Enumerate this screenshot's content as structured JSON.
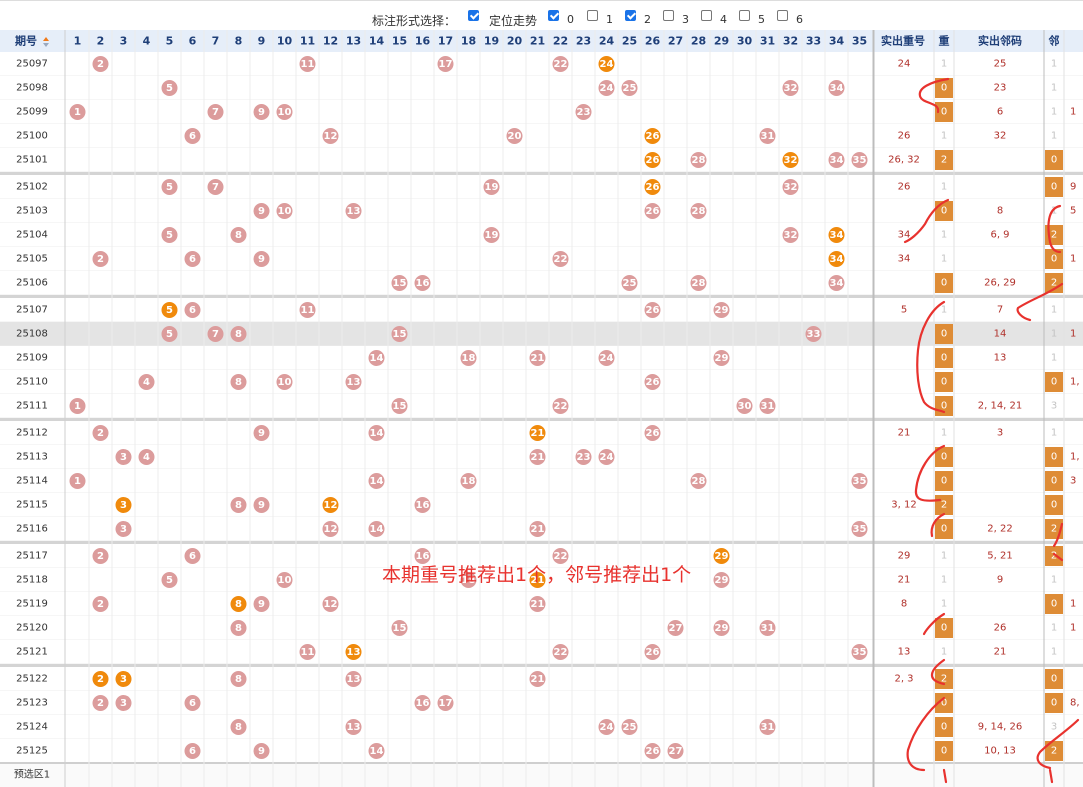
{
  "toolbar": {
    "label": "标注形式选择：",
    "options": [
      {
        "label": "定位走势",
        "checked": true
      },
      {
        "label": "0",
        "checked": true
      },
      {
        "label": "1",
        "checked": false
      },
      {
        "label": "2",
        "checked": true
      },
      {
        "label": "3",
        "checked": false
      },
      {
        "label": "4",
        "checked": false
      },
      {
        "label": "5",
        "checked": false
      },
      {
        "label": "6",
        "checked": false
      }
    ]
  },
  "header": {
    "period": "期号",
    "sort_icon": "sort-arrows-icon",
    "numbers": [
      "1",
      "2",
      "3",
      "4",
      "5",
      "6",
      "7",
      "8",
      "9",
      "10",
      "11",
      "12",
      "13",
      "14",
      "15",
      "16",
      "17",
      "18",
      "19",
      "20",
      "21",
      "22",
      "23",
      "24",
      "25",
      "26",
      "27",
      "28",
      "29",
      "30",
      "31",
      "32",
      "33",
      "34",
      "35"
    ],
    "repeat_col": "实出重号",
    "repeat_mark": "重",
    "adjacent_col": "实出邻码",
    "adjacent_mark": "邻"
  },
  "colors": {
    "ball_pink": "#dc9c9c",
    "ball_orange": "#f08a0c",
    "header_bg": "#e6eef9",
    "header_text": "#1f3f78",
    "mark_bg": "#de8c36",
    "annot_red": "#e8322e"
  },
  "rows": [
    {
      "period": "25097",
      "balls": [
        2,
        11,
        17,
        22,
        24
      ],
      "hl": [
        24
      ],
      "repeat": "24",
      "rmark": "1",
      "adjacent": "25",
      "amark": "1",
      "atail": ""
    },
    {
      "period": "25098",
      "balls": [
        5,
        24,
        25,
        32,
        34
      ],
      "hl": [],
      "repeat": "",
      "rmark": "0",
      "adjacent": "23",
      "amark": "1",
      "atail": ""
    },
    {
      "period": "25099",
      "balls": [
        1,
        7,
        9,
        10,
        23
      ],
      "hl": [],
      "repeat": "",
      "rmark": "0",
      "adjacent": "6",
      "amark": "1",
      "atail": "1"
    },
    {
      "period": "25100",
      "balls": [
        6,
        12,
        20,
        26,
        31
      ],
      "hl": [
        26
      ],
      "repeat": "26",
      "rmark": "1",
      "adjacent": "32",
      "amark": "1",
      "atail": ""
    },
    {
      "period": "25101",
      "balls": [
        26,
        28,
        32,
        34,
        35
      ],
      "hl": [
        26,
        32
      ],
      "repeat": "26, 32",
      "rmark": "2",
      "adjacent": "",
      "amark": "0",
      "atail": ""
    },
    {
      "period": "25102",
      "balls": [
        5,
        7,
        19,
        26,
        32
      ],
      "hl": [
        26
      ],
      "repeat": "26",
      "rmark": "1",
      "adjacent": "",
      "amark": "0",
      "atail": "9"
    },
    {
      "period": "25103",
      "balls": [
        9,
        10,
        13,
        26,
        28
      ],
      "hl": [],
      "repeat": "",
      "rmark": "0",
      "adjacent": "8",
      "amark": "1",
      "atail": "5"
    },
    {
      "period": "25104",
      "balls": [
        5,
        8,
        19,
        32,
        34
      ],
      "hl": [
        34
      ],
      "repeat": "34",
      "rmark": "1",
      "adjacent": "6, 9",
      "amark": "2",
      "atail": ""
    },
    {
      "period": "25105",
      "balls": [
        2,
        6,
        9,
        22,
        34
      ],
      "hl": [
        34
      ],
      "repeat": "34",
      "rmark": "1",
      "adjacent": "",
      "amark": "0",
      "atail": "1"
    },
    {
      "period": "25106",
      "balls": [
        15,
        16,
        25,
        28,
        34
      ],
      "hl": [],
      "repeat": "",
      "rmark": "0",
      "adjacent": "26, 29",
      "amark": "2",
      "atail": ""
    },
    {
      "period": "25107",
      "balls": [
        5,
        6,
        11,
        26,
        29
      ],
      "hl": [
        5
      ],
      "repeat": "5",
      "rmark": "1",
      "adjacent": "7",
      "amark": "1",
      "atail": ""
    },
    {
      "period": "25108",
      "balls": [
        5,
        7,
        8,
        15,
        33
      ],
      "hl": [],
      "repeat": "",
      "rmark": "0",
      "adjacent": "14",
      "amark": "1",
      "atail": "1"
    },
    {
      "period": "25109",
      "balls": [
        14,
        18,
        21,
        24,
        29
      ],
      "hl": [],
      "repeat": "",
      "rmark": "0",
      "adjacent": "13",
      "amark": "1",
      "atail": ""
    },
    {
      "period": "25110",
      "balls": [
        4,
        8,
        10,
        13,
        26
      ],
      "hl": [],
      "repeat": "",
      "rmark": "0",
      "adjacent": "",
      "amark": "0",
      "atail": "1,"
    },
    {
      "period": "25111",
      "balls": [
        1,
        15,
        22,
        30,
        31
      ],
      "hl": [],
      "repeat": "",
      "rmark": "0",
      "adjacent": "2, 14, 21",
      "amark": "3",
      "atail": ""
    },
    {
      "period": "25112",
      "balls": [
        2,
        9,
        14,
        21,
        26
      ],
      "hl": [
        21
      ],
      "repeat": "21",
      "rmark": "1",
      "adjacent": "3",
      "amark": "1",
      "atail": ""
    },
    {
      "period": "25113",
      "balls": [
        3,
        4,
        21,
        23,
        24
      ],
      "hl": [],
      "repeat": "",
      "rmark": "0",
      "adjacent": "",
      "amark": "0",
      "atail": "1,"
    },
    {
      "period": "25114",
      "balls": [
        1,
        14,
        18,
        28,
        35
      ],
      "hl": [],
      "repeat": "",
      "rmark": "0",
      "adjacent": "",
      "amark": "0",
      "atail": "3"
    },
    {
      "period": "25115",
      "balls": [
        3,
        8,
        9,
        12,
        16
      ],
      "hl": [
        3,
        12
      ],
      "repeat": "3, 12",
      "rmark": "2",
      "adjacent": "",
      "amark": "0",
      "atail": ""
    },
    {
      "period": "25116",
      "balls": [
        3,
        12,
        14,
        21,
        35
      ],
      "hl": [],
      "repeat": "",
      "rmark": "0",
      "adjacent": "2, 22",
      "amark": "2",
      "atail": ""
    },
    {
      "period": "25117",
      "balls": [
        2,
        6,
        16,
        22,
        29
      ],
      "hl": [
        29
      ],
      "repeat": "29",
      "rmark": "1",
      "adjacent": "5, 21",
      "amark": "2",
      "atail": ""
    },
    {
      "period": "25118",
      "balls": [
        5,
        10,
        18,
        21,
        29
      ],
      "hl": [
        21
      ],
      "repeat": "21",
      "rmark": "1",
      "adjacent": "9",
      "amark": "1",
      "atail": ""
    },
    {
      "period": "25119",
      "balls": [
        2,
        8,
        9,
        12,
        21
      ],
      "hl": [
        8
      ],
      "repeat": "8",
      "rmark": "1",
      "adjacent": "",
      "amark": "0",
      "atail": "1"
    },
    {
      "period": "25120",
      "balls": [
        8,
        15,
        27,
        29,
        31
      ],
      "hl": [],
      "repeat": "",
      "rmark": "0",
      "adjacent": "26",
      "amark": "1",
      "atail": "1"
    },
    {
      "period": "25121",
      "balls": [
        11,
        13,
        22,
        26,
        35
      ],
      "hl": [
        13
      ],
      "repeat": "13",
      "rmark": "1",
      "adjacent": "21",
      "amark": "1",
      "atail": ""
    },
    {
      "period": "25122",
      "balls": [
        2,
        3,
        8,
        13,
        21
      ],
      "hl": [
        2,
        3
      ],
      "repeat": "2, 3",
      "rmark": "2",
      "adjacent": "",
      "amark": "0",
      "atail": ""
    },
    {
      "period": "25123",
      "balls": [
        2,
        3,
        6,
        16,
        17
      ],
      "hl": [],
      "repeat": "",
      "rmark": "0",
      "adjacent": "",
      "amark": "0",
      "atail": "8,"
    },
    {
      "period": "25124",
      "balls": [
        8,
        13,
        24,
        25,
        31
      ],
      "hl": [],
      "repeat": "",
      "rmark": "0",
      "adjacent": "9, 14, 26",
      "amark": "3",
      "atail": ""
    },
    {
      "period": "25125",
      "balls": [
        6,
        9,
        14,
        26,
        27
      ],
      "hl": [],
      "repeat": "",
      "rmark": "0",
      "adjacent": "10, 13",
      "amark": "2",
      "atail": ""
    }
  ],
  "preselect_label": "预选区1",
  "annotation_text": "本期重号推荐出1个，邻号推荐出1个"
}
